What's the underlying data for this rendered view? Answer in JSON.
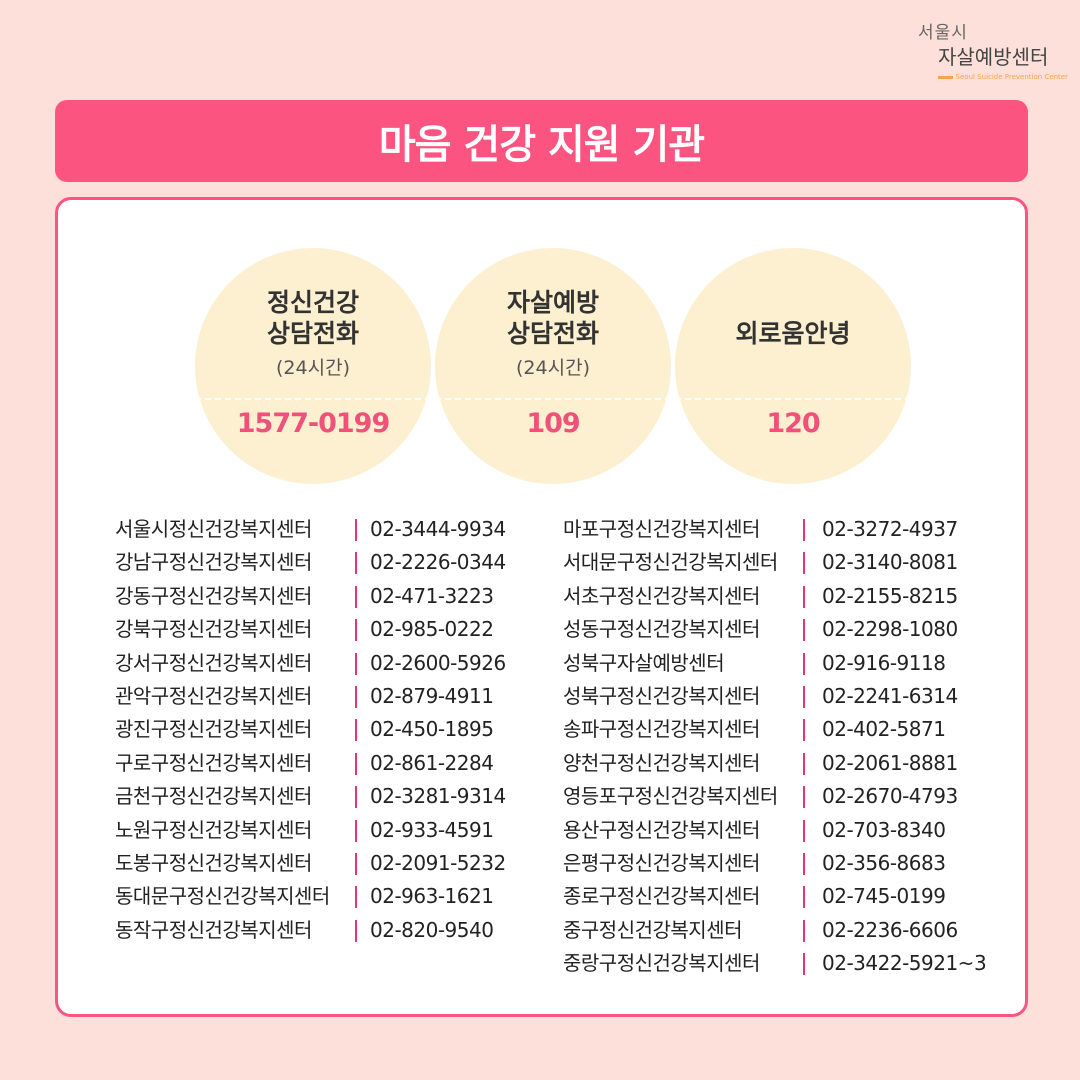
{
  "logo": {
    "line1": "서울시",
    "line2": "자살예방센터",
    "line3": "Seoul Suicide Prevention Center"
  },
  "header": {
    "title": "마음 건강 지원 기관"
  },
  "hotlines": [
    {
      "name1": "정신건강",
      "name2": "상담전화",
      "sub": "(24시간)",
      "number": "1577-0199"
    },
    {
      "name1": "자살예방",
      "name2": "상담전화",
      "sub": "(24시간)",
      "number": "109"
    },
    {
      "name1": "외로움안녕",
      "name2": "",
      "sub": "",
      "number": "120"
    }
  ],
  "left_list": [
    {
      "name": "서울시정신건강복지센터",
      "phone": "02-3444-9934"
    },
    {
      "name": "강남구정신건강복지센터",
      "phone": "02-2226-0344"
    },
    {
      "name": "강동구정신건강복지센터",
      "phone": "02-471-3223"
    },
    {
      "name": "강북구정신건강복지센터",
      "phone": "02-985-0222"
    },
    {
      "name": "강서구정신건강복지센터",
      "phone": "02-2600-5926"
    },
    {
      "name": "관악구정신건강복지센터",
      "phone": "02-879-4911"
    },
    {
      "name": "광진구정신건강복지센터",
      "phone": "02-450-1895"
    },
    {
      "name": "구로구정신건강복지센터",
      "phone": "02-861-2284"
    },
    {
      "name": "금천구정신건강복지센터",
      "phone": "02-3281-9314"
    },
    {
      "name": "노원구정신건강복지센터",
      "phone": "02-933-4591"
    },
    {
      "name": "도봉구정신건강복지센터",
      "phone": "02-2091-5232"
    },
    {
      "name": "동대문구정신건강복지센터",
      "phone": "02-963-1621"
    },
    {
      "name": "동작구정신건강복지센터",
      "phone": "02-820-9540"
    }
  ],
  "right_list": [
    {
      "name": "마포구정신건강복지센터",
      "phone": "02-3272-4937"
    },
    {
      "name": "서대문구정신건강복지센터",
      "phone": "02-3140-8081"
    },
    {
      "name": "서초구정신건강복지센터",
      "phone": "02-2155-8215"
    },
    {
      "name": "성동구정신건강복지센터",
      "phone": "02-2298-1080"
    },
    {
      "name": "성북구자살예방센터",
      "phone": "02-916-9118"
    },
    {
      "name": "성북구정신건강복지센터",
      "phone": "02-2241-6314"
    },
    {
      "name": "송파구정신건강복지센터",
      "phone": "02-402-5871"
    },
    {
      "name": "양천구정신건강복지센터",
      "phone": "02-2061-8881"
    },
    {
      "name": "영등포구정신건강복지센터",
      "phone": "02-2670-4793"
    },
    {
      "name": "용산구정신건강복지센터",
      "phone": "02-703-8340"
    },
    {
      "name": "은평구정신건강복지센터",
      "phone": "02-356-8683"
    },
    {
      "name": "종로구정신건강복지센터",
      "phone": "02-745-0199"
    },
    {
      "name": "중구정신건강복지센터",
      "phone": "02-2236-6606"
    },
    {
      "name": "중랑구정신건강복지센터",
      "phone": "02-3422-5921~3"
    }
  ],
  "colors": {
    "accent": "#fb5481",
    "background": "#fde0da",
    "circle": "#fdf0d0",
    "number": "#f0517a"
  }
}
